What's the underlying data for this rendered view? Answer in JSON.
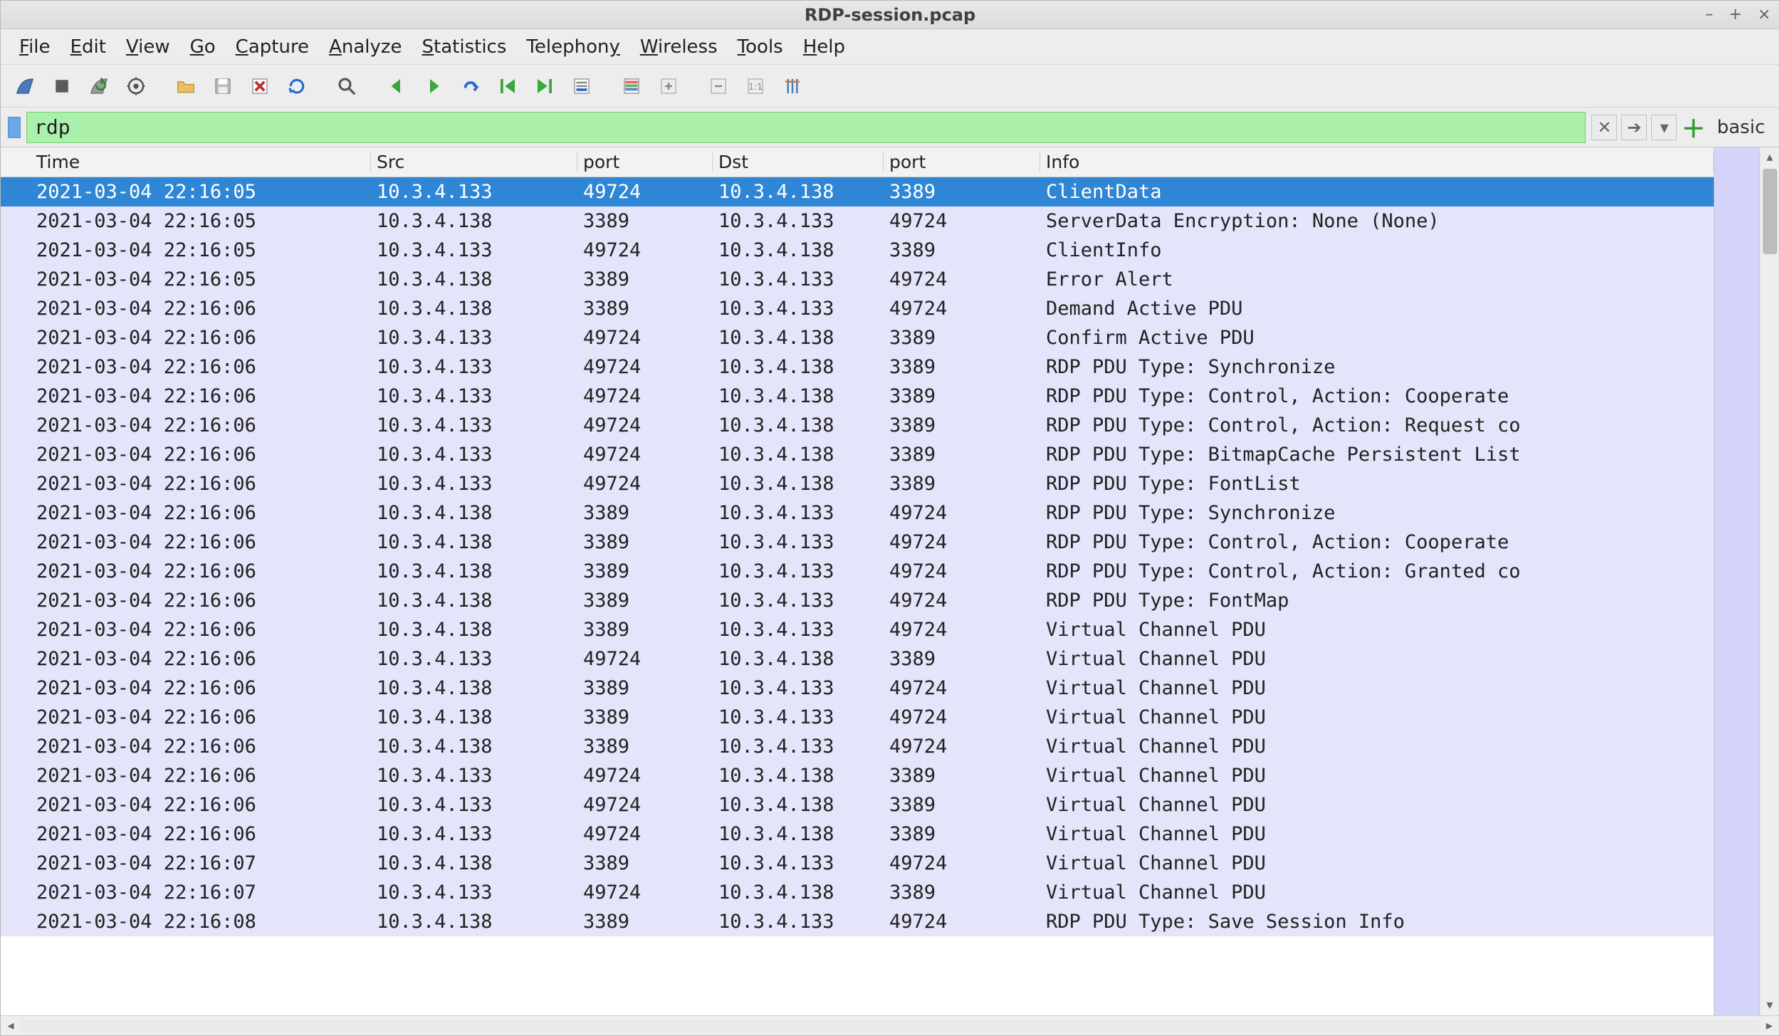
{
  "window": {
    "title": "RDP-session.pcap"
  },
  "menu": {
    "items": [
      {
        "label": "File",
        "ul": 0
      },
      {
        "label": "Edit",
        "ul": 0
      },
      {
        "label": "View",
        "ul": 0
      },
      {
        "label": "Go",
        "ul": 0
      },
      {
        "label": "Capture",
        "ul": 0
      },
      {
        "label": "Analyze",
        "ul": 0
      },
      {
        "label": "Statistics",
        "ul": 0
      },
      {
        "label": "Telephony",
        "ul": 8
      },
      {
        "label": "Wireless",
        "ul": 0
      },
      {
        "label": "Tools",
        "ul": 0
      },
      {
        "label": "Help",
        "ul": 0
      }
    ]
  },
  "filter": {
    "value": "rdp",
    "label": "basic",
    "valid_bg": "#aaf0aa",
    "valid_border": "#7cc87c"
  },
  "columns": [
    {
      "key": "time",
      "label": "Time",
      "class": "col-time"
    },
    {
      "key": "src",
      "label": "Src",
      "class": "col-src"
    },
    {
      "key": "sport",
      "label": "port",
      "class": "col-sport"
    },
    {
      "key": "dst",
      "label": "Dst",
      "class": "col-dst"
    },
    {
      "key": "dport",
      "label": "port",
      "class": "col-dport"
    },
    {
      "key": "info",
      "label": "Info",
      "class": "col-info"
    }
  ],
  "colors": {
    "row_bg": "#e4e4fa",
    "selected_bg": "#2e86d4",
    "selected_fg": "#ffffff",
    "gutter_bg": "#d4d4fa"
  },
  "packets": [
    {
      "selected": true,
      "time": "2021-03-04 22:16:05",
      "src": "10.3.4.133",
      "sport": "49724",
      "dst": "10.3.4.138",
      "dport": "3389",
      "info": "ClientData"
    },
    {
      "time": "2021-03-04 22:16:05",
      "src": "10.3.4.138",
      "sport": "3389",
      "dst": "10.3.4.133",
      "dport": "49724",
      "info": "ServerData Encryption: None (None)"
    },
    {
      "time": "2021-03-04 22:16:05",
      "src": "10.3.4.133",
      "sport": "49724",
      "dst": "10.3.4.138",
      "dport": "3389",
      "info": "ClientInfo"
    },
    {
      "time": "2021-03-04 22:16:05",
      "src": "10.3.4.138",
      "sport": "3389",
      "dst": "10.3.4.133",
      "dport": "49724",
      "info": "Error Alert"
    },
    {
      "time": "2021-03-04 22:16:06",
      "src": "10.3.4.138",
      "sport": "3389",
      "dst": "10.3.4.133",
      "dport": "49724",
      "info": "Demand Active PDU"
    },
    {
      "time": "2021-03-04 22:16:06",
      "src": "10.3.4.133",
      "sport": "49724",
      "dst": "10.3.4.138",
      "dport": "3389",
      "info": "Confirm Active PDU"
    },
    {
      "time": "2021-03-04 22:16:06",
      "src": "10.3.4.133",
      "sport": "49724",
      "dst": "10.3.4.138",
      "dport": "3389",
      "info": "RDP PDU Type: Synchronize"
    },
    {
      "time": "2021-03-04 22:16:06",
      "src": "10.3.4.133",
      "sport": "49724",
      "dst": "10.3.4.138",
      "dport": "3389",
      "info": "RDP PDU Type: Control, Action: Cooperate"
    },
    {
      "time": "2021-03-04 22:16:06",
      "src": "10.3.4.133",
      "sport": "49724",
      "dst": "10.3.4.138",
      "dport": "3389",
      "info": "RDP PDU Type: Control, Action: Request co"
    },
    {
      "time": "2021-03-04 22:16:06",
      "src": "10.3.4.133",
      "sport": "49724",
      "dst": "10.3.4.138",
      "dport": "3389",
      "info": "RDP PDU Type: BitmapCache Persistent List"
    },
    {
      "time": "2021-03-04 22:16:06",
      "src": "10.3.4.133",
      "sport": "49724",
      "dst": "10.3.4.138",
      "dport": "3389",
      "info": "RDP PDU Type: FontList"
    },
    {
      "time": "2021-03-04 22:16:06",
      "src": "10.3.4.138",
      "sport": "3389",
      "dst": "10.3.4.133",
      "dport": "49724",
      "info": "RDP PDU Type: Synchronize"
    },
    {
      "time": "2021-03-04 22:16:06",
      "src": "10.3.4.138",
      "sport": "3389",
      "dst": "10.3.4.133",
      "dport": "49724",
      "info": "RDP PDU Type: Control, Action: Cooperate"
    },
    {
      "time": "2021-03-04 22:16:06",
      "src": "10.3.4.138",
      "sport": "3389",
      "dst": "10.3.4.133",
      "dport": "49724",
      "info": "RDP PDU Type: Control, Action: Granted co"
    },
    {
      "time": "2021-03-04 22:16:06",
      "src": "10.3.4.138",
      "sport": "3389",
      "dst": "10.3.4.133",
      "dport": "49724",
      "info": "RDP PDU Type: FontMap"
    },
    {
      "time": "2021-03-04 22:16:06",
      "src": "10.3.4.138",
      "sport": "3389",
      "dst": "10.3.4.133",
      "dport": "49724",
      "info": "Virtual Channel PDU"
    },
    {
      "time": "2021-03-04 22:16:06",
      "src": "10.3.4.133",
      "sport": "49724",
      "dst": "10.3.4.138",
      "dport": "3389",
      "info": "Virtual Channel PDU"
    },
    {
      "time": "2021-03-04 22:16:06",
      "src": "10.3.4.138",
      "sport": "3389",
      "dst": "10.3.4.133",
      "dport": "49724",
      "info": "Virtual Channel PDU"
    },
    {
      "time": "2021-03-04 22:16:06",
      "src": "10.3.4.138",
      "sport": "3389",
      "dst": "10.3.4.133",
      "dport": "49724",
      "info": "Virtual Channel PDU"
    },
    {
      "time": "2021-03-04 22:16:06",
      "src": "10.3.4.138",
      "sport": "3389",
      "dst": "10.3.4.133",
      "dport": "49724",
      "info": "Virtual Channel PDU"
    },
    {
      "time": "2021-03-04 22:16:06",
      "src": "10.3.4.133",
      "sport": "49724",
      "dst": "10.3.4.138",
      "dport": "3389",
      "info": "Virtual Channel PDU"
    },
    {
      "time": "2021-03-04 22:16:06",
      "src": "10.3.4.133",
      "sport": "49724",
      "dst": "10.3.4.138",
      "dport": "3389",
      "info": "Virtual Channel PDU"
    },
    {
      "time": "2021-03-04 22:16:06",
      "src": "10.3.4.133",
      "sport": "49724",
      "dst": "10.3.4.138",
      "dport": "3389",
      "info": "Virtual Channel PDU"
    },
    {
      "time": "2021-03-04 22:16:07",
      "src": "10.3.4.138",
      "sport": "3389",
      "dst": "10.3.4.133",
      "dport": "49724",
      "info": "Virtual Channel PDU"
    },
    {
      "time": "2021-03-04 22:16:07",
      "src": "10.3.4.133",
      "sport": "49724",
      "dst": "10.3.4.138",
      "dport": "3389",
      "info": "Virtual Channel PDU"
    },
    {
      "time": "2021-03-04 22:16:08",
      "src": "10.3.4.138",
      "sport": "3389",
      "dst": "10.3.4.133",
      "dport": "49724",
      "info": "RDP PDU Type: Save Session Info"
    }
  ],
  "toolbar_icons": [
    "shark-fin-icon",
    "stop-icon",
    "restart-icon",
    "options-icon",
    "open-icon",
    "save-icon",
    "close-icon",
    "reload-icon",
    "find-icon",
    "back-icon",
    "forward-icon",
    "jump-icon",
    "first-icon",
    "last-icon",
    "autoscroll-icon",
    "colorize-icon",
    "zoom-in-icon",
    "zoom-out-icon",
    "zoom-reset-icon",
    "resize-cols-icon"
  ]
}
